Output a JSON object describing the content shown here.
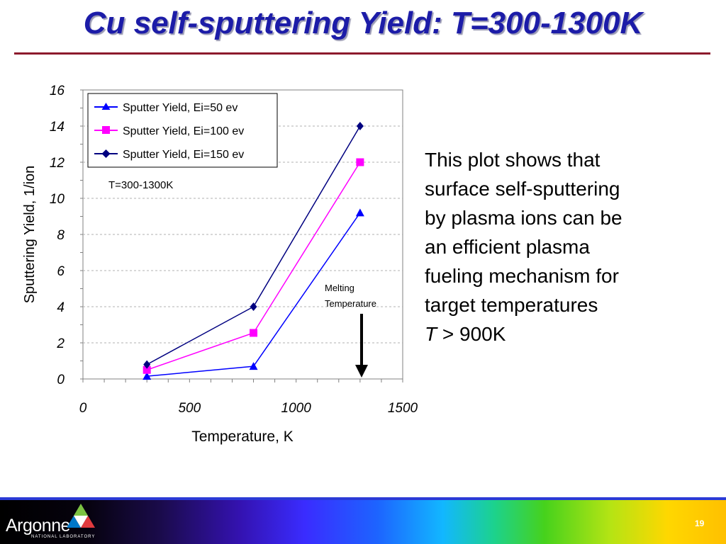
{
  "slide": {
    "title": "Cu self-sputtering Yield: T=300-1300K",
    "caption_lines": [
      "This plot shows that",
      "surface self-sputtering",
      "by plasma ions can be",
      "an efficient plasma",
      "fueling mechanism for",
      "target temperatures"
    ],
    "caption_last_var": "T",
    "caption_last_rest": " > 900K",
    "page_number": "19",
    "logo_text": "Argonne",
    "logo_subtext": "NATIONAL LABORATORY"
  },
  "colors": {
    "title": "#1c1ca8",
    "rule": "#8c1a2c",
    "series": [
      "#0000ff",
      "#ff00ff",
      "#000080"
    ]
  },
  "chart_data": {
    "type": "line",
    "xlabel": "Temperature, K",
    "ylabel": "Sputtering Yield, 1/ion",
    "xlim": [
      0,
      1500
    ],
    "ylim": [
      0,
      16
    ],
    "x_ticks": [
      0,
      500,
      1000,
      1500
    ],
    "y_ticks": [
      0,
      2,
      4,
      6,
      8,
      10,
      12,
      14,
      16
    ],
    "grid": "horizontal dashed",
    "legend_position": "top-left",
    "series": [
      {
        "name": "Sputter Yield, Ei=50 ev",
        "marker": "triangle",
        "x": [
          300,
          800,
          1300
        ],
        "values": [
          0.15,
          0.7,
          9.2
        ]
      },
      {
        "name": "Sputter Yield, Ei=100 ev",
        "marker": "square",
        "x": [
          300,
          800,
          1300
        ],
        "values": [
          0.5,
          2.55,
          12.0
        ]
      },
      {
        "name": "Sputter Yield, Ei=150 ev",
        "marker": "diamond",
        "x": [
          300,
          800,
          1300
        ],
        "values": [
          0.8,
          4.0,
          14.0
        ]
      }
    ],
    "annotations": [
      {
        "text": "T=300-1300K"
      },
      {
        "text_lines": [
          "Melting",
          "Temperature"
        ],
        "x": 1300,
        "arrow_to_y": 0
      }
    ]
  }
}
